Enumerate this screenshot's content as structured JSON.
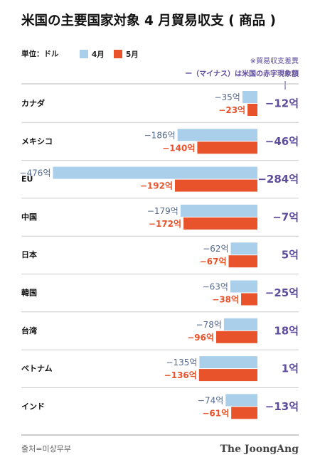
{
  "chart_data": {
    "type": "bar",
    "orientation": "horizontal",
    "title": "米国の主要国家対象 4 月貿易収支 ( 商品 )",
    "unit_label": "単位：ドル",
    "note_1": "※貿易収支差異",
    "note_2": "ー（マイナス）は米国の赤字現象額",
    "source": "출처=미상무부",
    "credit": "The JoongAng",
    "categories": [
      "カナダ",
      "メキシコ",
      "EU",
      "中国",
      "日本",
      "韓国",
      "台湾",
      "ベトナム",
      "インド"
    ],
    "xlim": [
      -480,
      0
    ],
    "series": [
      {
        "name": "4月",
        "color": "#a9cfea",
        "values": [
          -35,
          -186,
          -476,
          -179,
          -62,
          -63,
          -78,
          -135,
          -74
        ],
        "value_labels": [
          "−35억",
          "−186억",
          "−476억",
          "−179억",
          "−62억",
          "−63억",
          "−78억",
          "−135억",
          "−74억"
        ]
      },
      {
        "name": "5月",
        "color": "#e8532b",
        "values": [
          -23,
          -140,
          -192,
          -172,
          -67,
          -38,
          -96,
          -136,
          -61
        ],
        "value_labels": [
          "−23억",
          "−140억",
          "−192억",
          "−172억",
          "−67억",
          "−38억",
          "−96억",
          "−136억",
          "−61억"
        ]
      }
    ],
    "differences": {
      "color": "#5e4b9c",
      "values": [
        -12,
        -46,
        -284,
        -7,
        5,
        -25,
        18,
        1,
        -13
      ],
      "value_labels": [
        "−12억",
        "−46억",
        "−284억",
        "−7억",
        "5억",
        "−25억",
        "18억",
        "1억",
        "−13억"
      ]
    }
  }
}
